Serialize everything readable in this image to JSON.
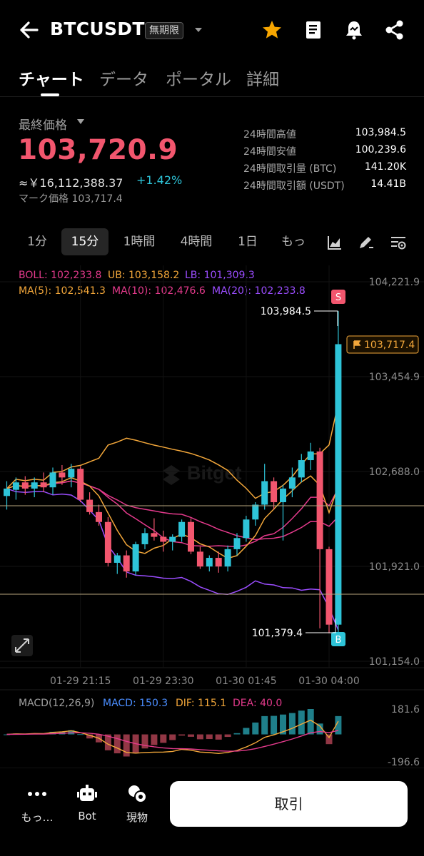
{
  "header": {
    "symbol": "BTCUSDT",
    "badge": "無期限",
    "icons": [
      "back-arrow-icon",
      "star-icon",
      "notebook-icon",
      "alert-bell-icon",
      "share-icon"
    ],
    "star_color": "#f7a600"
  },
  "tabs": [
    {
      "label": "チャート",
      "active": true
    },
    {
      "label": "データ"
    },
    {
      "label": "ポータル"
    },
    {
      "label": "詳細"
    }
  ],
  "price": {
    "label": "最終価格",
    "last": "103,720.9",
    "approx": "≈￥16,112,388.37",
    "change": "+1.42%",
    "mark": "マーク価格 103,717.4",
    "up_color": "#2ec4d8",
    "down_color": "#f2566e"
  },
  "stats": [
    {
      "label": "24時間高値",
      "value": "103,984.5"
    },
    {
      "label": "24時間安値",
      "value": "100,239.6"
    },
    {
      "label": "24時間取引量 (BTC)",
      "value": "141.20K"
    },
    {
      "label": "24時間取引額 (USDT)",
      "value": "14.41B"
    }
  ],
  "intervals": [
    {
      "label": "1分"
    },
    {
      "label": "15分",
      "active": true
    },
    {
      "label": "1時間"
    },
    {
      "label": "4時間"
    },
    {
      "label": "1日"
    },
    {
      "label": "もっ"
    }
  ],
  "indicators": {
    "boll": "BOLL: 102,233.8",
    "ub": "UB: 103,158.2",
    "lb": "LB: 101,309.3",
    "ma5": "MA(5): 102,541.3",
    "ma10": "MA(10): 102,476.6",
    "ma20": "MA(20): 102,233.8",
    "macd_title": "MACD(12,26,9)",
    "macd": "MACD: 150.3",
    "dif": "DIF: 115.1",
    "dea": "DEA: 40.0"
  },
  "chart": {
    "high_label": "103,984.5",
    "low_label": "101,379.4",
    "current_label": "103,717.4",
    "sell_marker": "S",
    "buy_marker": "B",
    "watermark": "Bitget"
  },
  "chart_data": {
    "type": "candlestick",
    "y_ticks": [
      "104,221.9",
      "103,454.9",
      "102,688.0",
      "101,921.0",
      "101,154.0"
    ],
    "ylim": [
      101154.0,
      104221.9
    ],
    "x_ticks": [
      "01-29 21:15",
      "01-29 23:30",
      "01-30 01:45",
      "01-30 04:00"
    ],
    "interval": "15分",
    "candles": [
      {
        "o": 102490,
        "h": 102610,
        "l": 102380,
        "c": 102550
      },
      {
        "o": 102540,
        "h": 102640,
        "l": 102460,
        "c": 102600
      },
      {
        "o": 102600,
        "h": 102650,
        "l": 102500,
        "c": 102550
      },
      {
        "o": 102550,
        "h": 102640,
        "l": 102480,
        "c": 102600
      },
      {
        "o": 102600,
        "h": 102680,
        "l": 102520,
        "c": 102560
      },
      {
        "o": 102560,
        "h": 102720,
        "l": 102500,
        "c": 102680
      },
      {
        "o": 102680,
        "h": 102740,
        "l": 102580,
        "c": 102640
      },
      {
        "o": 102640,
        "h": 102750,
        "l": 102560,
        "c": 102710
      },
      {
        "o": 102710,
        "h": 102730,
        "l": 102440,
        "c": 102460
      },
      {
        "o": 102460,
        "h": 102520,
        "l": 102340,
        "c": 102360
      },
      {
        "o": 102360,
        "h": 102420,
        "l": 102250,
        "c": 102280
      },
      {
        "o": 102280,
        "h": 102320,
        "l": 101920,
        "c": 101950
      },
      {
        "o": 101950,
        "h": 102030,
        "l": 101860,
        "c": 102010
      },
      {
        "o": 102010,
        "h": 102050,
        "l": 101830,
        "c": 101880
      },
      {
        "o": 101880,
        "h": 102120,
        "l": 101850,
        "c": 102100
      },
      {
        "o": 102100,
        "h": 102230,
        "l": 102060,
        "c": 102190
      },
      {
        "o": 102190,
        "h": 102310,
        "l": 102130,
        "c": 102160
      },
      {
        "o": 102160,
        "h": 102210,
        "l": 102040,
        "c": 102120
      },
      {
        "o": 102120,
        "h": 102180,
        "l": 102050,
        "c": 102160
      },
      {
        "o": 102160,
        "h": 102300,
        "l": 102120,
        "c": 102280
      },
      {
        "o": 102280,
        "h": 102310,
        "l": 102020,
        "c": 102040
      },
      {
        "o": 102040,
        "h": 102080,
        "l": 101900,
        "c": 101920
      },
      {
        "o": 101920,
        "h": 102010,
        "l": 101880,
        "c": 101990
      },
      {
        "o": 101990,
        "h": 102040,
        "l": 101870,
        "c": 101920
      },
      {
        "o": 101920,
        "h": 102090,
        "l": 101880,
        "c": 102060
      },
      {
        "o": 102060,
        "h": 102190,
        "l": 102010,
        "c": 102150
      },
      {
        "o": 102150,
        "h": 102330,
        "l": 102120,
        "c": 102300
      },
      {
        "o": 102300,
        "h": 102440,
        "l": 102250,
        "c": 102420
      },
      {
        "o": 102420,
        "h": 102750,
        "l": 102380,
        "c": 102610
      },
      {
        "o": 102610,
        "h": 102640,
        "l": 102380,
        "c": 102440
      },
      {
        "o": 102440,
        "h": 102580,
        "l": 102130,
        "c": 102550
      },
      {
        "o": 102550,
        "h": 102720,
        "l": 102480,
        "c": 102640
      },
      {
        "o": 102640,
        "h": 102830,
        "l": 102600,
        "c": 102780
      },
      {
        "o": 102780,
        "h": 102920,
        "l": 102700,
        "c": 102850
      },
      {
        "o": 102850,
        "h": 102880,
        "l": 101420,
        "c": 102060
      },
      {
        "o": 102060,
        "h": 102080,
        "l": 101380,
        "c": 101450
      },
      {
        "o": 101450,
        "h": 103984.5,
        "l": 101379.4,
        "c": 103717.4
      }
    ],
    "macd_ticks": [
      "181.6",
      "-196.6"
    ],
    "macd_ylim": [
      -196.6,
      181.6
    ]
  },
  "bottom": {
    "more": "もっ…",
    "bot": "Bot",
    "spot": "現物",
    "trade": "取引"
  }
}
